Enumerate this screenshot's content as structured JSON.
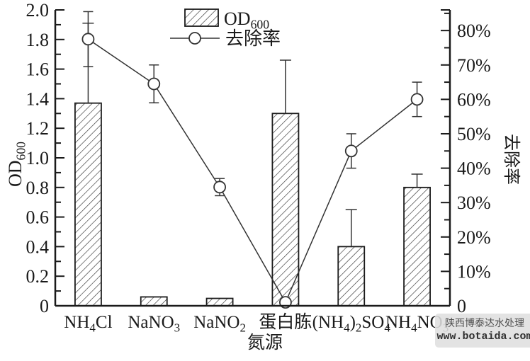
{
  "watermark": {
    "line1": "陕西博泰达水处理",
    "line2": "www.botaida.com"
  },
  "chart_data": {
    "type": "bar",
    "subtype": "bar+line dual-axis",
    "categories": [
      "NH4Cl",
      "NaNO3",
      "NaNO2",
      "蛋白胨",
      "(NH4)2SO4",
      "NH4NO3"
    ],
    "categories_rich": [
      [
        {
          "t": "NH"
        },
        {
          "t": "4",
          "s": true
        },
        {
          "t": "Cl"
        }
      ],
      [
        {
          "t": "NaNO"
        },
        {
          "t": "3",
          "s": true
        }
      ],
      [
        {
          "t": "NaNO"
        },
        {
          "t": "2",
          "s": true
        }
      ],
      [
        {
          "t": "蛋白胨"
        }
      ],
      [
        {
          "t": "(NH"
        },
        {
          "t": "4",
          "s": true
        },
        {
          "t": ")"
        },
        {
          "t": "2",
          "s": true
        },
        {
          "t": "SO"
        },
        {
          "t": "4",
          "s": true
        }
      ],
      [
        {
          "t": "NH"
        },
        {
          "t": "4",
          "s": true
        },
        {
          "t": "NO"
        },
        {
          "t": "3",
          "s": true
        }
      ]
    ],
    "xlabel": "氮源",
    "left_axis": {
      "label": "OD600",
      "label_rich": [
        {
          "t": "OD"
        },
        {
          "t": "600",
          "s": true
        }
      ],
      "min": 0,
      "max": 2.0,
      "major_step": 0.2,
      "minor_step": 0.1,
      "tick_labels": [
        "0",
        "0.2",
        "0.4",
        "0.6",
        "0.8",
        "1.0",
        "1.2",
        "1.4",
        "1.6",
        "1.8",
        "2.0"
      ]
    },
    "right_axis": {
      "label": "去除率",
      "min": 0,
      "max": 86,
      "major_step": 10,
      "minor_step": 5,
      "unit": "%",
      "tick_labels": [
        "0",
        "10%",
        "20%",
        "30%",
        "40%",
        "50%",
        "60%",
        "70%",
        "80%"
      ]
    },
    "series": [
      {
        "name": "OD600",
        "name_rich": [
          {
            "t": "OD"
          },
          {
            "t": "600",
            "s": true
          }
        ],
        "type": "bar",
        "axis": "left",
        "values": [
          1.37,
          0.06,
          0.05,
          1.3,
          0.4,
          0.8
        ],
        "err_up": [
          0.54,
          0,
          0,
          0.36,
          0.25,
          0.09
        ]
      },
      {
        "name": "去除率",
        "name_rich": [
          {
            "t": "去除率"
          }
        ],
        "type": "line",
        "axis": "right",
        "values": [
          77.5,
          64.5,
          34.5,
          1.0,
          45.0,
          60.0
        ],
        "err": [
          8.0,
          5.5,
          2.5,
          0.8,
          5.0,
          5.0
        ]
      }
    ],
    "legend": {
      "position": "top-center",
      "entries": [
        "OD600",
        "去除率"
      ]
    },
    "grid": false,
    "colors": {
      "ink": "#1a1a1a",
      "line": "#333333",
      "marker_fill": "#ffffff",
      "hatch": "#333333"
    }
  }
}
